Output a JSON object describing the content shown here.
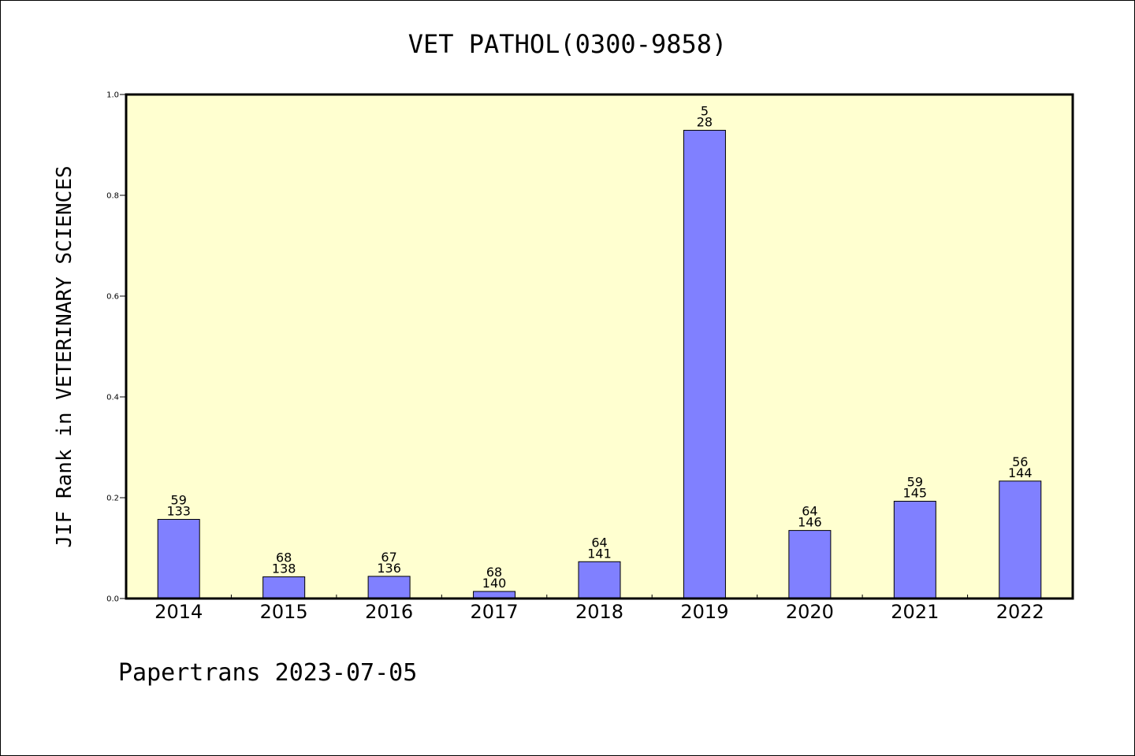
{
  "chart_data": {
    "type": "bar",
    "title": "VET PATHOL(0300-9858)",
    "ylabel": "JIF Rank in VETERINARY SCIENCES",
    "xlabel": "",
    "ylim": [
      0,
      1.0
    ],
    "yticks": [
      "0.0",
      "0.2",
      "0.4",
      "0.6",
      "0.8",
      "1.0"
    ],
    "categories": [
      "2014",
      "2015",
      "2016",
      "2017",
      "2018",
      "2019",
      "2020",
      "2021",
      "2022"
    ],
    "values": [
      0.157,
      0.043,
      0.044,
      0.014,
      0.073,
      0.929,
      0.135,
      0.193,
      0.233
    ],
    "rank": [
      "59",
      "68",
      "67",
      "68",
      "64",
      "5",
      "64",
      "59",
      "56"
    ],
    "total": [
      "133",
      "138",
      "136",
      "140",
      "141",
      "28",
      "146",
      "145",
      "144"
    ],
    "grid": false,
    "colors": {
      "plot_background": "#ffffd0",
      "bar_fill": "#8080ff",
      "bar_stroke": "#000000"
    }
  },
  "footer": "Papertrans 2023-07-05"
}
